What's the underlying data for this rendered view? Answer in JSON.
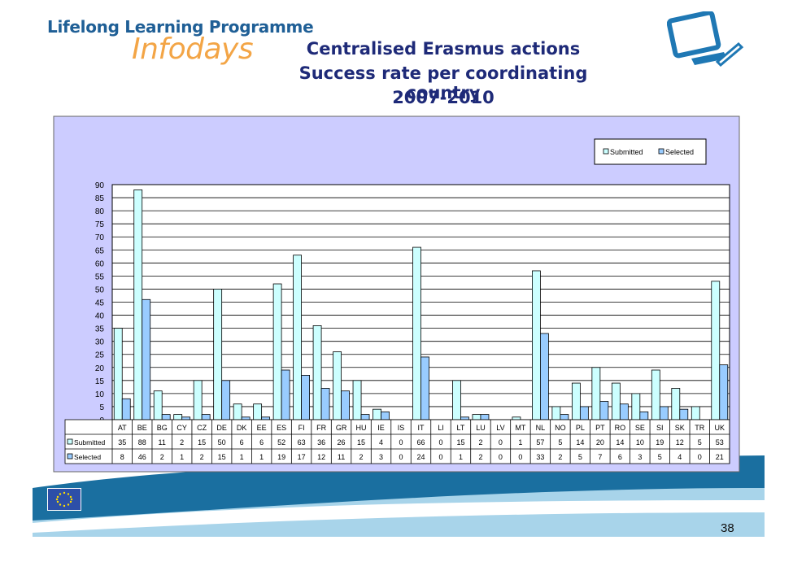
{
  "header": {
    "brand_line1": "Lifelong Learning Programme",
    "brand_line2": "Infodays",
    "title_line1": "Centralised Erasmus actions",
    "title_line2": "Success rate per coordinating country",
    "title_line3": "2007-2010"
  },
  "footer": {
    "page_number": "38"
  },
  "colors": {
    "plot_background": "#ccccff",
    "submitted_fill": "#ccffff",
    "selected_fill": "#99ccff",
    "wave_dark": "#1a6fa0",
    "wave_light": "#a8d4ea"
  },
  "icons": [
    "computer-monitor-icon",
    "eu-flag-icon"
  ],
  "chart_data": {
    "type": "bar",
    "categories": [
      "AT",
      "BE",
      "BG",
      "CY",
      "CZ",
      "DE",
      "DK",
      "EE",
      "ES",
      "FI",
      "FR",
      "GR",
      "HU",
      "IE",
      "IS",
      "IT",
      "LI",
      "LT",
      "LU",
      "LV",
      "MT",
      "NL",
      "NO",
      "PL",
      "PT",
      "RO",
      "SE",
      "SI",
      "SK",
      "TR",
      "UK"
    ],
    "series": [
      {
        "name": "Submitted",
        "values": [
          35,
          88,
          11,
          2,
          15,
          50,
          6,
          6,
          52,
          63,
          36,
          26,
          15,
          4,
          0,
          66,
          0,
          15,
          2,
          0,
          1,
          57,
          5,
          14,
          20,
          14,
          10,
          19,
          12,
          5,
          53
        ]
      },
      {
        "name": "Selected",
        "values": [
          8,
          46,
          2,
          1,
          2,
          15,
          1,
          1,
          19,
          17,
          12,
          11,
          2,
          3,
          0,
          24,
          0,
          1,
          2,
          0,
          0,
          33,
          2,
          5,
          7,
          6,
          3,
          5,
          4,
          0,
          21
        ]
      }
    ],
    "ylim": [
      0,
      90
    ],
    "yticks": [
      0,
      5,
      10,
      15,
      20,
      25,
      30,
      35,
      40,
      45,
      50,
      55,
      60,
      65,
      70,
      75,
      80,
      85,
      90
    ],
    "grid": true,
    "legend": "top-right",
    "data_table": true
  }
}
